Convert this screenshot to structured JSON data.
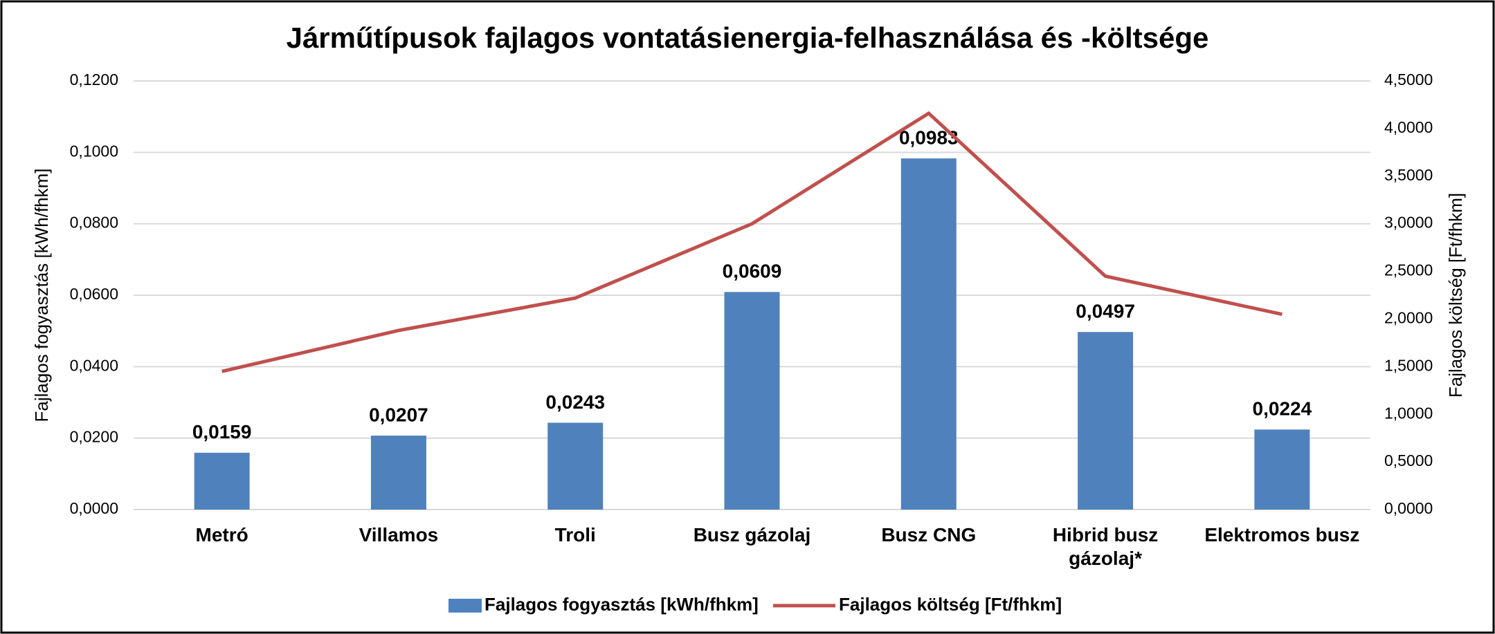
{
  "chart_data": {
    "type": "bar_line",
    "title": "Járműtípusok fajlagos vontatásienergia-felhasználása és -költsége",
    "categories": [
      "Metró",
      "Villamos",
      "Troli",
      "Busz gázolaj",
      "Busz CNG",
      "Hibrid busz gázolaj*",
      "Elektromos busz"
    ],
    "series": [
      {
        "name": "Fajlagos fogyasztás [kWh/fhkm]",
        "type": "bar",
        "color": "#4f81bd",
        "axis": "y",
        "values": [
          0.0159,
          0.0207,
          0.0243,
          0.0609,
          0.0983,
          0.0497,
          0.0224
        ],
        "value_labels": [
          "0,0159",
          "0,0207",
          "0,0243",
          "0,0609",
          "0,0983",
          "0,0497",
          "0,0224"
        ]
      },
      {
        "name": "Fajlagos költség [Ft/fhkm]",
        "type": "line",
        "color": "#c0504d",
        "axis": "y2",
        "values": [
          1.45,
          1.88,
          2.22,
          3.0,
          4.16,
          2.45,
          2.05
        ]
      }
    ],
    "y_label": "Fajlagos fogyasztás [kWh/fhkm]",
    "y2_label": "Fajlagos költség [Ft/fhkm]",
    "ylim": [
      0,
      0.12
    ],
    "yticks": [
      {
        "value": 0,
        "label": "0,0000"
      },
      {
        "value": 0.02,
        "label": "0,0200"
      },
      {
        "value": 0.04,
        "label": "0,0400"
      },
      {
        "value": 0.06,
        "label": "0,0600"
      },
      {
        "value": 0.08,
        "label": "0,0800"
      },
      {
        "value": 0.1,
        "label": "0,1000"
      },
      {
        "value": 0.12,
        "label": "0,1200"
      }
    ],
    "y2lim": [
      0,
      4.5
    ],
    "y2ticks": [
      {
        "value": 0,
        "label": "0,0000"
      },
      {
        "value": 0.5,
        "label": "0,5000"
      },
      {
        "value": 1,
        "label": "1,0000"
      },
      {
        "value": 1.5,
        "label": "1,5000"
      },
      {
        "value": 2,
        "label": "2,0000"
      },
      {
        "value": 2.5,
        "label": "2,5000"
      },
      {
        "value": 3,
        "label": "3,0000"
      },
      {
        "value": 3.5,
        "label": "3,5000"
      },
      {
        "value": 4,
        "label": "4,0000"
      },
      {
        "value": 4.5,
        "label": "4,5000"
      }
    ],
    "grid": true,
    "legend": "bottom"
  }
}
